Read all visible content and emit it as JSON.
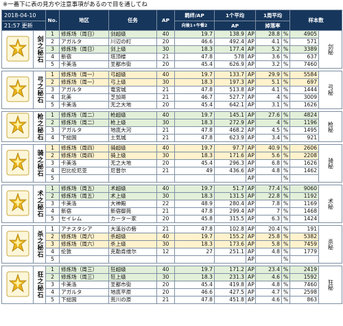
{
  "note": "※一番下に表の見方や注意事項があるので目を通してね",
  "header": {
    "date": "2018-04-10",
    "time_update": "21:57 更新",
    "col_no": "No.",
    "col_area": "地区",
    "col_mission": "任务",
    "col_ap": "AP",
    "col_drop": "羁绊/AP",
    "col_drop_sub": "向後1+午餐2",
    "col_avg": "1个平均",
    "col_avg_sub": "AP",
    "col_week": "1周平均",
    "col_week_sub": "掉落率",
    "col_samples": "样本数"
  },
  "groups": [
    {
      "name": "剑之秘石",
      "side": "剑秘",
      "color": "#e8b21a",
      "rows": [
        {
          "no": "1",
          "area": "修炼场（周日）",
          "mission": "剑超级",
          "ap": "40",
          "drop": "19.7",
          "avg": "138.9",
          "avg_unit": "AP",
          "rate": "28.8",
          "rate_unit": "%",
          "samples": "4905",
          "bg": "g"
        },
        {
          "no": "2",
          "area": "アガルタ",
          "mission": "川辺の町",
          "ap": "20",
          "drop": "46.6",
          "avg": "492.4",
          "avg_unit": "AP",
          "rate": "4.1",
          "rate_unit": "%",
          "samples": "571",
          "bg": "w"
        },
        {
          "no": "3",
          "area": "修炼场（周日）",
          "mission": "剑上级",
          "ap": "30",
          "drop": "18.3",
          "avg": "177.4",
          "avg_unit": "AP",
          "rate": "5.2",
          "rate_unit": "%",
          "samples": "3389",
          "bg": "g"
        },
        {
          "no": "4",
          "area": "新宿",
          "mission": "塔顶楼",
          "ap": "21",
          "drop": "47.8",
          "avg": "578",
          "avg_unit": "AP",
          "rate": "3.6",
          "rate_unit": "%",
          "samples": "637",
          "bg": "w"
        },
        {
          "no": "5",
          "area": "卡美洛",
          "mission": "圣都市街",
          "ap": "20",
          "drop": "45.4",
          "avg": "626.9",
          "avg_unit": "AP",
          "rate": "3.2",
          "rate_unit": "%",
          "samples": "7460",
          "bg": "w"
        }
      ]
    },
    {
      "name": "弓之秘石",
      "side": "弓秘",
      "color": "#e8b21a",
      "rows": [
        {
          "no": "1",
          "area": "修炼场（周一）",
          "mission": "弓超级",
          "ap": "40",
          "drop": "19.7",
          "avg": "133.7",
          "avg_unit": "AP",
          "rate": "29.9",
          "rate_unit": "%",
          "samples": "5584",
          "bg": "y"
        },
        {
          "no": "2",
          "area": "修炼场（周一）",
          "mission": "弓上级",
          "ap": "30",
          "drop": "18.3",
          "avg": "197.3",
          "avg_unit": "AP",
          "rate": "5.1",
          "rate_unit": "%",
          "samples": "697",
          "bg": "y"
        },
        {
          "no": "3",
          "area": "アガルタ",
          "mission": "竜宮城",
          "ap": "21",
          "drop": "47.8",
          "avg": "513.8",
          "avg_unit": "AP",
          "rate": "4.1",
          "rate_unit": "%",
          "samples": "1444",
          "bg": "w"
        },
        {
          "no": "4",
          "area": "北美",
          "mission": "芝加哥",
          "ap": "21",
          "drop": "46.7",
          "avg": "527.7",
          "avg_unit": "AP",
          "rate": "4",
          "rate_unit": "%",
          "samples": "3009",
          "bg": "w"
        },
        {
          "no": "5",
          "area": "卡美洛",
          "mission": "无之大地",
          "ap": "20",
          "drop": "45.4",
          "avg": "642.1",
          "avg_unit": "AP",
          "rate": "3.1",
          "rate_unit": "%",
          "samples": "1626",
          "bg": "w"
        }
      ]
    },
    {
      "name": "枪之秘石",
      "side": "枪秘",
      "color": "#e8b21a",
      "rows": [
        {
          "no": "1",
          "area": "修炼场（周二）",
          "mission": "枪超级",
          "ap": "40",
          "drop": "19.7",
          "avg": "145.1",
          "avg_unit": "AP",
          "rate": "27.6",
          "rate_unit": "%",
          "samples": "4824",
          "bg": "g"
        },
        {
          "no": "2",
          "area": "修炼场（周二）",
          "mission": "枪上级",
          "ap": "30",
          "drop": "18.3",
          "avg": "272.9",
          "avg_unit": "AP",
          "rate": "4",
          "rate_unit": "%",
          "samples": "1196",
          "bg": "g"
        },
        {
          "no": "3",
          "area": "アガルタ",
          "mission": "地底大河",
          "ap": "21",
          "drop": "47.8",
          "avg": "468.2",
          "avg_unit": "AP",
          "rate": "4.5",
          "rate_unit": "%",
          "samples": "1495",
          "bg": "w"
        },
        {
          "no": "4",
          "area": "下総国",
          "mission": "土気城",
          "ap": "21",
          "drop": "47.8",
          "avg": "623.9",
          "avg_unit": "AP",
          "rate": "3.4",
          "rate_unit": "%",
          "samples": "921",
          "bg": "w"
        }
      ]
    },
    {
      "name": "骑之秘石",
      "side": "骑秘",
      "color": "#e8b21a",
      "rows": [
        {
          "no": "1",
          "area": "修炼场（周四）",
          "mission": "骑超级",
          "ap": "40",
          "drop": "19.7",
          "avg": "97.7",
          "avg_unit": "AP",
          "rate": "40.9",
          "rate_unit": "%",
          "samples": "2606",
          "bg": "y"
        },
        {
          "no": "2",
          "area": "修炼场（周四）",
          "mission": "骑上级",
          "ap": "30",
          "drop": "18.3",
          "avg": "171.6",
          "avg_unit": "AP",
          "rate": "5.6",
          "rate_unit": "%",
          "samples": "2208",
          "bg": "y"
        },
        {
          "no": "3",
          "area": "卡美洛",
          "mission": "无之大地",
          "ap": "20",
          "drop": "45.4",
          "avg": "296.3",
          "avg_unit": "AP",
          "rate": "6.8",
          "rate_unit": "%",
          "samples": "1626",
          "bg": "w"
        },
        {
          "no": "4",
          "area": "巴比伦尼亚",
          "mission": "尼普尔",
          "ap": "21",
          "drop": "49",
          "avg": "436.6",
          "avg_unit": "AP",
          "rate": "4.8",
          "rate_unit": "%",
          "samples": "1462",
          "bg": "w"
        },
        {
          "no": "5",
          "area": "",
          "mission": "",
          "ap": "",
          "drop": "",
          "avg": "",
          "avg_unit": "AP",
          "rate": "",
          "rate_unit": "%",
          "samples": "",
          "bg": "w"
        }
      ]
    },
    {
      "name": "术之秘石",
      "side": "术秘",
      "color": "#e8b21a",
      "rows": [
        {
          "no": "1",
          "area": "修炼场（周五）",
          "mission": "术超级",
          "ap": "40",
          "drop": "19.7",
          "avg": "51.7",
          "avg_unit": "AP",
          "rate": "77.4",
          "rate_unit": "%",
          "samples": "9060",
          "bg": "g"
        },
        {
          "no": "2",
          "area": "修炼场（周五）",
          "mission": "术上级",
          "ap": "30",
          "drop": "18.3",
          "avg": "131.5",
          "avg_unit": "AP",
          "rate": "22.8",
          "rate_unit": "%",
          "samples": "1192",
          "bg": "g"
        },
        {
          "no": "3",
          "area": "卡美洛",
          "mission": "大神殿",
          "ap": "22",
          "drop": "48.9",
          "avg": "280.4",
          "avg_unit": "AP",
          "rate": "7.8",
          "rate_unit": "%",
          "samples": "1169",
          "bg": "w"
        },
        {
          "no": "4",
          "area": "新宿",
          "mission": "新宿御苑",
          "ap": "21",
          "drop": "47.8",
          "avg": "299.4",
          "avg_unit": "AP",
          "rate": "7",
          "rate_unit": "%",
          "samples": "1468",
          "bg": "w"
        },
        {
          "no": "5",
          "area": "セイレム",
          "mission": "カーター家",
          "ap": "20",
          "drop": "45.8",
          "avg": "315.5",
          "avg_unit": "AP",
          "rate": "6.3",
          "rate_unit": "%",
          "samples": "1424",
          "bg": "w"
        }
      ]
    },
    {
      "name": "杀之秘石",
      "side": "杀秘",
      "color": "#e8b21a",
      "rows": [
        {
          "no": "1",
          "area": "アナスタシア",
          "mission": "大溪谷の砦",
          "ap": "21",
          "drop": "47.8",
          "avg": "102.8",
          "avg_unit": "AP",
          "rate": "20.4",
          "rate_unit": "%",
          "samples": "191",
          "bg": "w"
        },
        {
          "no": "2",
          "area": "修炼场（周六）",
          "mission": "杀超级",
          "ap": "40",
          "drop": "19.7",
          "avg": "155.2",
          "avg_unit": "AP",
          "rate": "25.8",
          "rate_unit": "%",
          "samples": "5382",
          "bg": "y"
        },
        {
          "no": "3",
          "area": "修炼场（周六）",
          "mission": "杀上级",
          "ap": "30",
          "drop": "18.3",
          "avg": "173.6",
          "avg_unit": "AP",
          "rate": "5.8",
          "rate_unit": "%",
          "samples": "7459",
          "bg": "y"
        },
        {
          "no": "4",
          "area": "伦敦",
          "mission": "克勒肯维尔",
          "ap": "12",
          "drop": "27",
          "avg": "251.1",
          "avg_unit": "AP",
          "rate": "4.8",
          "rate_unit": "%",
          "samples": "1779",
          "bg": "w"
        },
        {
          "no": "5",
          "area": "",
          "mission": "",
          "ap": "",
          "drop": "",
          "avg": "",
          "avg_unit": "AP",
          "rate": "",
          "rate_unit": "%",
          "samples": "",
          "bg": "w"
        }
      ]
    },
    {
      "name": "狂之秘石",
      "side": "狂秘",
      "color": "#e8b21a",
      "rows": [
        {
          "no": "1",
          "area": "修炼场（周三）",
          "mission": "狂超级",
          "ap": "40",
          "drop": "19.7",
          "avg": "171.2",
          "avg_unit": "AP",
          "rate": "23.4",
          "rate_unit": "%",
          "samples": "2419",
          "bg": "g"
        },
        {
          "no": "2",
          "area": "修炼场（周三）",
          "mission": "狂上级",
          "ap": "30",
          "drop": "18.3",
          "avg": "231.3",
          "avg_unit": "AP",
          "rate": "4.6",
          "rate_unit": "%",
          "samples": "1592",
          "bg": "g"
        },
        {
          "no": "3",
          "area": "卡美洛",
          "mission": "圣都市街",
          "ap": "20",
          "drop": "45.4",
          "avg": "419.8",
          "avg_unit": "AP",
          "rate": "4.8",
          "rate_unit": "%",
          "samples": "7460",
          "bg": "w"
        },
        {
          "no": "4",
          "area": "アガルタ",
          "mission": "地底平原",
          "ap": "20",
          "drop": "46.6",
          "avg": "427.5",
          "avg_unit": "AP",
          "rate": "4.7",
          "rate_unit": "%",
          "samples": "2598",
          "bg": "w"
        },
        {
          "no": "5",
          "area": "下総国",
          "mission": "荒川の原",
          "ap": "21",
          "drop": "47.8",
          "avg": "451.8",
          "avg_unit": "AP",
          "rate": "4.6",
          "rate_unit": "%",
          "samples": "863",
          "bg": "w"
        }
      ]
    }
  ]
}
